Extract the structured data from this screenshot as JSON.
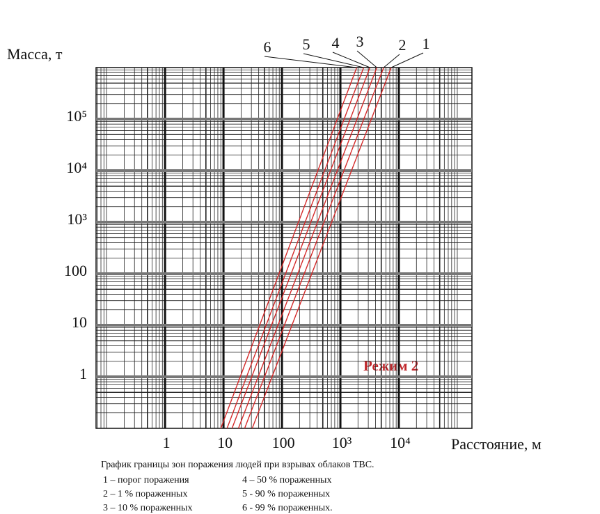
{
  "chart_data": {
    "type": "line",
    "y_label": "Масса,  т",
    "x_label": "Расстояние,  м",
    "annotation": "Режим 2",
    "caption": "График границы зон поражения людей при взрывах облаков ТВС.",
    "legend_text": [
      "1 – порог поражения",
      "4 – 50 % пораженных",
      "2 – 1 % пораженных",
      "5 - 90 % пораженных",
      "3 – 10 % пораженных",
      "6 - 99 % пораженных."
    ],
    "log_x": true,
    "log_y": true,
    "grid": true,
    "xlim": [
      0.066,
      178000
    ],
    "ylim": [
      0.1,
      1000000
    ],
    "xticks": [
      1,
      10,
      100,
      {
        "value": 1000,
        "label": "10³"
      },
      {
        "value": 10000,
        "label": "10⁴"
      }
    ],
    "yticks": [
      1,
      10,
      100,
      {
        "value": 1000,
        "label": "10³"
      },
      {
        "value": 10000,
        "label": "10⁴"
      },
      {
        "value": 100000,
        "label": "10⁵"
      }
    ],
    "series": [
      {
        "name": "1",
        "color": "#d42a2a",
        "x": [
          31,
          7400
        ],
        "values": [
          0.1,
          1000000
        ]
      },
      {
        "name": "2",
        "color": "#d42a2a",
        "x": [
          23,
          5500
        ],
        "values": [
          0.1,
          1000000
        ]
      },
      {
        "name": "3",
        "color": "#d42a2a",
        "x": [
          18,
          4200
        ],
        "values": [
          0.1,
          1000000
        ]
      },
      {
        "name": "4",
        "color": "#d42a2a",
        "x": [
          14,
          3200
        ],
        "values": [
          0.1,
          1000000
        ]
      },
      {
        "name": "5",
        "color": "#d42a2a",
        "x": [
          11.5,
          2500
        ],
        "values": [
          0.1,
          1000000
        ]
      },
      {
        "name": "6",
        "color": "#d42a2a",
        "x": [
          9,
          1900
        ],
        "values": [
          0.1,
          1000000
        ]
      }
    ]
  }
}
